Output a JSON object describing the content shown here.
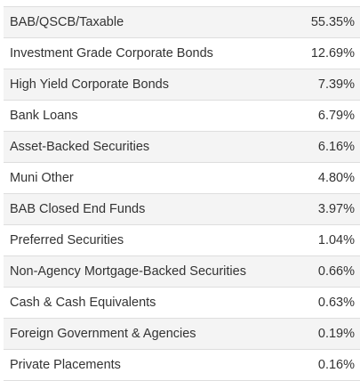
{
  "allocation": {
    "rows": [
      {
        "name": "BAB/QSCB/Taxable",
        "value": "55.35%"
      },
      {
        "name": "Investment Grade Corporate Bonds",
        "value": "12.69%"
      },
      {
        "name": "High Yield Corporate Bonds",
        "value": "7.39%"
      },
      {
        "name": "Bank Loans",
        "value": "6.79%"
      },
      {
        "name": "Asset-Backed Securities",
        "value": "6.16%"
      },
      {
        "name": "Muni Other",
        "value": "4.80%"
      },
      {
        "name": "BAB Closed End Funds",
        "value": "3.97%"
      },
      {
        "name": "Preferred Securities",
        "value": "1.04%"
      },
      {
        "name": "Non-Agency Mortgage-Backed Securities",
        "value": "0.66%"
      },
      {
        "name": "Cash & Cash Equivalents",
        "value": "0.63%"
      },
      {
        "name": "Foreign Government & Agencies",
        "value": "0.19%"
      },
      {
        "name": "Private Placements",
        "value": "0.16%"
      }
    ]
  }
}
